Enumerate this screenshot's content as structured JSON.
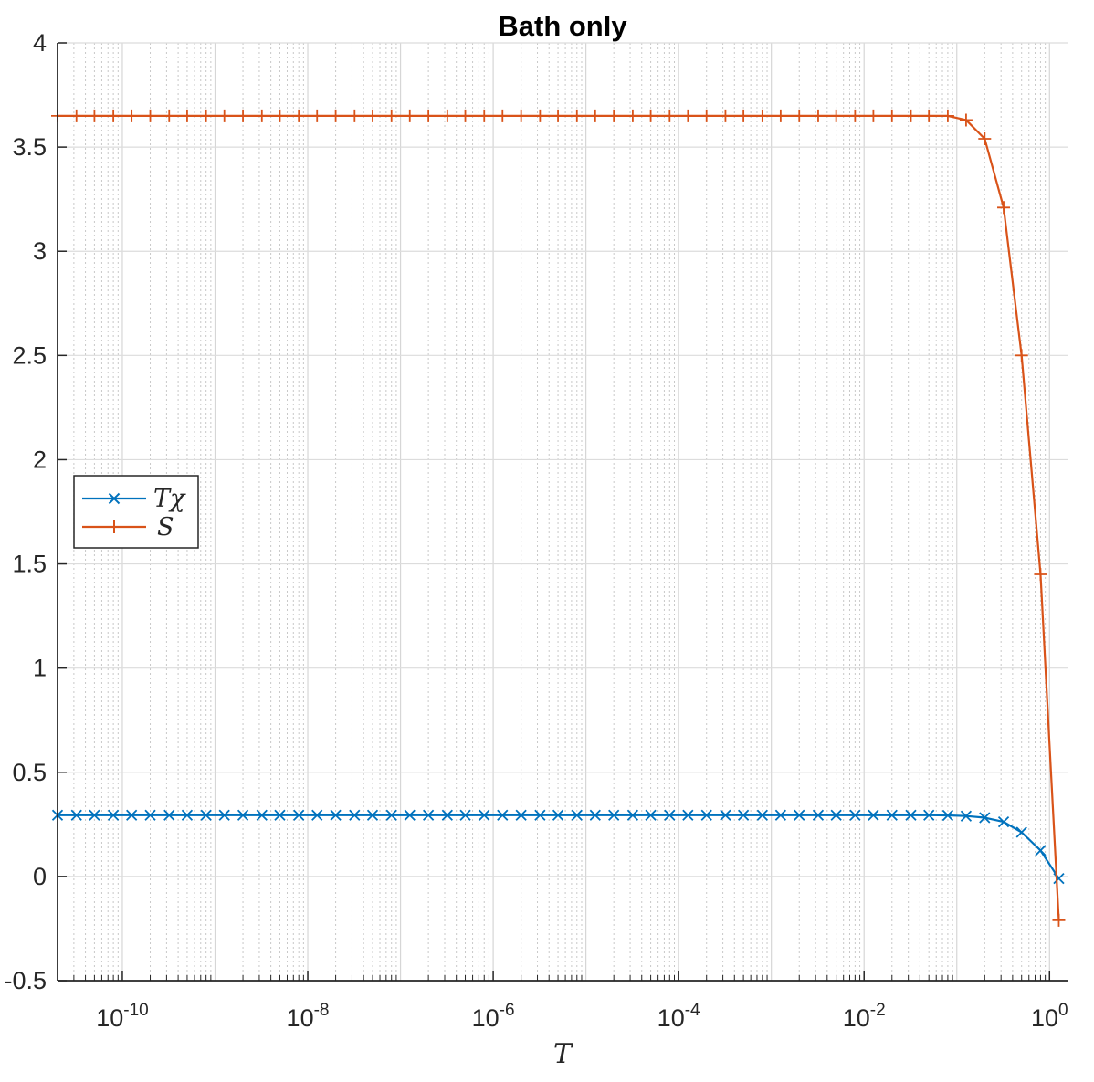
{
  "chart_data": {
    "type": "line",
    "title": "Bath only",
    "xlabel": "T",
    "ylabel": "",
    "xscale": "log",
    "xlim": [
      2e-11,
      1.6
    ],
    "ylim": [
      -0.5,
      4
    ],
    "grid": "major and minor",
    "legend_position": "left",
    "x_ticks": [
      1e-10,
      1e-08,
      1e-06,
      0.0001,
      0.01,
      1
    ],
    "x_tick_labels": [
      {
        "base": "10",
        "exp": "-10"
      },
      {
        "base": "10",
        "exp": "-8"
      },
      {
        "base": "10",
        "exp": "-6"
      },
      {
        "base": "10",
        "exp": "-4"
      },
      {
        "base": "10",
        "exp": "-2"
      },
      {
        "base": "10",
        "exp": "0"
      }
    ],
    "y_ticks": [
      -0.5,
      0,
      0.5,
      1,
      1.5,
      2,
      2.5,
      3,
      3.5,
      4
    ],
    "y_tick_labels": [
      "-0.5",
      "0",
      "0.5",
      "1",
      "1.5",
      "2",
      "2.5",
      "3",
      "3.5",
      "4"
    ],
    "x": [
      2e-11,
      3.2e-11,
      5e-11,
      8e-11,
      1.26e-10,
      2e-10,
      3.2e-10,
      5e-10,
      8e-10,
      1.26e-09,
      2e-09,
      3.2e-09,
      5e-09,
      8e-09,
      1.26e-08,
      2e-08,
      3.2e-08,
      5e-08,
      8e-08,
      1.26e-07,
      2e-07,
      3.2e-07,
      5e-07,
      8e-07,
      1.26e-06,
      2e-06,
      3.2e-06,
      5e-06,
      8e-06,
      1.26e-05,
      2e-05,
      3.2e-05,
      5e-05,
      8e-05,
      0.000126,
      0.0002,
      0.00032,
      0.0005,
      0.0008,
      0.00126,
      0.002,
      0.0032,
      0.005,
      0.008,
      0.0126,
      0.02,
      0.032,
      0.05,
      0.08,
      0.126,
      0.2,
      0.32,
      0.5,
      0.8,
      1.26
    ],
    "series": [
      {
        "name": "Tχ",
        "legend_label": "Tχ",
        "color": "#0072BD",
        "marker": "x",
        "values": [
          0.294,
          0.294,
          0.294,
          0.294,
          0.294,
          0.294,
          0.294,
          0.294,
          0.294,
          0.294,
          0.294,
          0.294,
          0.294,
          0.294,
          0.294,
          0.294,
          0.294,
          0.294,
          0.294,
          0.294,
          0.294,
          0.294,
          0.294,
          0.294,
          0.294,
          0.294,
          0.294,
          0.294,
          0.294,
          0.294,
          0.294,
          0.294,
          0.294,
          0.294,
          0.294,
          0.294,
          0.294,
          0.294,
          0.294,
          0.294,
          0.294,
          0.294,
          0.294,
          0.294,
          0.294,
          0.294,
          0.294,
          0.294,
          0.293,
          0.29,
          0.282,
          0.262,
          0.212,
          0.125,
          -0.01
        ]
      },
      {
        "name": "S",
        "legend_label": "S",
        "color": "#D95319",
        "marker": "+",
        "values": [
          3.65,
          3.65,
          3.65,
          3.65,
          3.65,
          3.65,
          3.65,
          3.65,
          3.65,
          3.65,
          3.65,
          3.65,
          3.65,
          3.65,
          3.65,
          3.65,
          3.65,
          3.65,
          3.65,
          3.65,
          3.65,
          3.65,
          3.65,
          3.65,
          3.65,
          3.65,
          3.65,
          3.65,
          3.65,
          3.65,
          3.65,
          3.65,
          3.65,
          3.65,
          3.65,
          3.65,
          3.65,
          3.65,
          3.65,
          3.65,
          3.65,
          3.65,
          3.65,
          3.65,
          3.65,
          3.65,
          3.65,
          3.65,
          3.65,
          3.63,
          3.54,
          3.21,
          2.5,
          1.45,
          -0.21
        ]
      }
    ]
  }
}
